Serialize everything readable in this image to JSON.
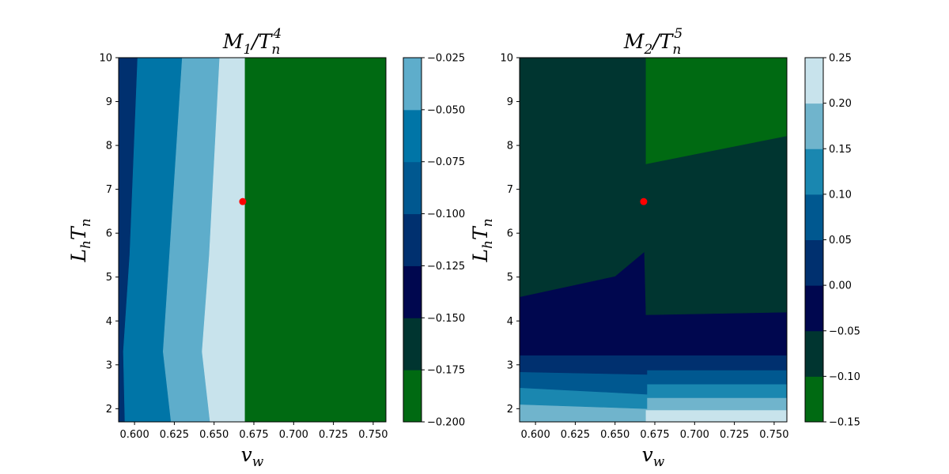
{
  "colors": {
    "palette": [
      "#006a12",
      "#003530",
      "#00074f",
      "#00306f",
      "#005890",
      "#1a87b0",
      "#70b4cc",
      "#c8e3ec"
    ],
    "marker": "#ff0000",
    "axis": "#000000"
  },
  "chart_data": [
    {
      "type": "heatmap",
      "title_main": "M",
      "title_sub1": "1",
      "title_slash": "/T",
      "title_sub2": "n",
      "title_sup": "4",
      "xlabel_main": "v",
      "xlabel_sub": "w",
      "ylabel_main": "L",
      "ylabel_sub1": "h",
      "ylabel_mid": "T",
      "ylabel_sub2": "n",
      "xlim": [
        0.59,
        0.758
      ],
      "ylim": [
        1.7,
        10.0
      ],
      "xticks": [
        0.6,
        0.625,
        0.65,
        0.675,
        0.7,
        0.725,
        0.75
      ],
      "xtick_labels": [
        "0.600",
        "0.625",
        "0.650",
        "0.675",
        "0.700",
        "0.725",
        "0.750"
      ],
      "yticks": [
        2,
        3,
        4,
        5,
        6,
        7,
        8,
        9,
        10
      ],
      "ytick_labels": [
        "2",
        "3",
        "4",
        "5",
        "6",
        "7",
        "8",
        "9",
        "10"
      ],
      "colorbar": {
        "levels": [
          -0.2,
          -0.175,
          -0.15,
          -0.125,
          -0.1,
          -0.075,
          -0.05,
          -0.025
        ],
        "tick_labels": [
          "−0.200",
          "−0.175",
          "−0.150",
          "−0.125",
          "−0.100",
          "−0.075",
          "−0.050",
          "−0.025"
        ],
        "colors": [
          "#006a12",
          "#003530",
          "#00074f",
          "#00306f",
          "#005890",
          "#0075a7",
          "#5eadcb",
          "#c8e3ec"
        ]
      },
      "regions": [
        {
          "color": "#00306f",
          "polygon": [
            [
              0.59,
              1.7
            ],
            [
              0.59,
              10.0
            ],
            [
              0.602,
              10.0
            ],
            [
              0.597,
              5.5
            ],
            [
              0.593,
              3.3
            ],
            [
              0.594,
              1.7
            ]
          ]
        },
        {
          "color": "#0075a7",
          "polygon": [
            [
              0.594,
              1.7
            ],
            [
              0.593,
              3.3
            ],
            [
              0.597,
              5.5
            ],
            [
              0.602,
              10.0
            ],
            [
              0.63,
              10.0
            ],
            [
              0.622,
              5.5
            ],
            [
              0.618,
              3.3
            ],
            [
              0.623,
              1.7
            ]
          ]
        },
        {
          "color": "#5eadcb",
          "polygon": [
            [
              0.623,
              1.7
            ],
            [
              0.618,
              3.3
            ],
            [
              0.622,
              5.5
            ],
            [
              0.63,
              10.0
            ],
            [
              0.6535,
              10.0
            ],
            [
              0.647,
              5.5
            ],
            [
              0.6425,
              3.3
            ],
            [
              0.6475,
              1.7
            ]
          ]
        },
        {
          "color": "#c8e3ec",
          "polygon": [
            [
              0.6475,
              1.7
            ],
            [
              0.6425,
              3.3
            ],
            [
              0.647,
              5.5
            ],
            [
              0.6535,
              10.0
            ],
            [
              0.6695,
              10.0
            ],
            [
              0.6695,
              1.7
            ]
          ]
        },
        {
          "color": "#006a12",
          "polygon": [
            [
              0.6695,
              1.7
            ],
            [
              0.6695,
              10.0
            ],
            [
              0.758,
              10.0
            ],
            [
              0.758,
              1.7
            ]
          ]
        }
      ],
      "marker": {
        "x": 0.668,
        "y": 6.72
      }
    },
    {
      "type": "heatmap",
      "title_main": "M",
      "title_sub1": "2",
      "title_slash": "/T",
      "title_sub2": "n",
      "title_sup": "5",
      "xlabel_main": "v",
      "xlabel_sub": "w",
      "ylabel_main": "L",
      "ylabel_sub1": "h",
      "ylabel_mid": "T",
      "ylabel_sub2": "n",
      "xlim": [
        0.59,
        0.758
      ],
      "ylim": [
        1.7,
        10.0
      ],
      "xticks": [
        0.6,
        0.625,
        0.65,
        0.675,
        0.7,
        0.725,
        0.75
      ],
      "xtick_labels": [
        "0.600",
        "0.625",
        "0.650",
        "0.675",
        "0.700",
        "0.725",
        "0.750"
      ],
      "yticks": [
        2,
        3,
        4,
        5,
        6,
        7,
        8,
        9,
        10
      ],
      "ytick_labels": [
        "2",
        "3",
        "4",
        "5",
        "6",
        "7",
        "8",
        "9",
        "10"
      ],
      "colorbar": {
        "levels": [
          -0.15,
          -0.1,
          -0.05,
          0.0,
          0.05,
          0.1,
          0.15,
          0.2,
          0.25
        ],
        "tick_labels": [
          "−0.15",
          "−0.10",
          "−0.05",
          "0.00",
          "0.05",
          "0.10",
          "0.15",
          "0.20",
          "0.25"
        ],
        "colors": [
          "#006a12",
          "#003530",
          "#00074f",
          "#00306f",
          "#005890",
          "#1a87b0",
          "#70b4cc",
          "#c8e3ec"
        ]
      },
      "regions": [
        {
          "color": "#70b4cc",
          "polygon": [
            [
              0.59,
              1.7
            ],
            [
              0.758,
              1.7
            ],
            [
              0.758,
              10.0
            ],
            [
              0.59,
              10.0
            ]
          ]
        },
        {
          "color": "#1a87b0",
          "polygon": [
            [
              0.59,
              2.1
            ],
            [
              0.67,
              2.0
            ],
            [
              0.67,
              2.25
            ],
            [
              0.758,
              2.25
            ],
            [
              0.758,
              10.0
            ],
            [
              0.59,
              10.0
            ]
          ]
        },
        {
          "color": "#005890",
          "polygon": [
            [
              0.59,
              2.48
            ],
            [
              0.67,
              2.33
            ],
            [
              0.67,
              2.56
            ],
            [
              0.758,
              2.56
            ],
            [
              0.758,
              10.0
            ],
            [
              0.59,
              10.0
            ]
          ]
        },
        {
          "color": "#00306f",
          "polygon": [
            [
              0.59,
              2.84
            ],
            [
              0.67,
              2.78
            ],
            [
              0.67,
              2.88
            ],
            [
              0.758,
              2.88
            ],
            [
              0.758,
              10.0
            ],
            [
              0.59,
              10.0
            ]
          ]
        },
        {
          "color": "#00074f",
          "polygon": [
            [
              0.59,
              3.22
            ],
            [
              0.758,
              3.22
            ],
            [
              0.758,
              10.0
            ],
            [
              0.59,
              10.0
            ]
          ]
        },
        {
          "color": "#003530",
          "polygon": [
            [
              0.59,
              4.55
            ],
            [
              0.65,
              5.02
            ],
            [
              0.6685,
              5.58
            ],
            [
              0.6695,
              4.14
            ],
            [
              0.758,
              4.2
            ],
            [
              0.758,
              10.0
            ],
            [
              0.59,
              10.0
            ]
          ]
        },
        {
          "color": "#006a12",
          "polygon": [
            [
              0.6695,
              7.58
            ],
            [
              0.758,
              8.22
            ],
            [
              0.758,
              10.0
            ],
            [
              0.6695,
              10.0
            ]
          ]
        },
        {
          "color": "#c8e3ec",
          "polygon": [
            [
              0.6695,
              1.7
            ],
            [
              0.758,
              1.7
            ],
            [
              0.758,
              1.96
            ],
            [
              0.6695,
              1.96
            ]
          ]
        },
        {
          "color": "#70b4cc",
          "polygon": [
            [
              0.59,
              1.7
            ],
            [
              0.602,
              1.7
            ],
            [
              0.59,
              1.75
            ]
          ]
        }
      ],
      "marker": {
        "x": 0.668,
        "y": 6.72
      }
    }
  ]
}
